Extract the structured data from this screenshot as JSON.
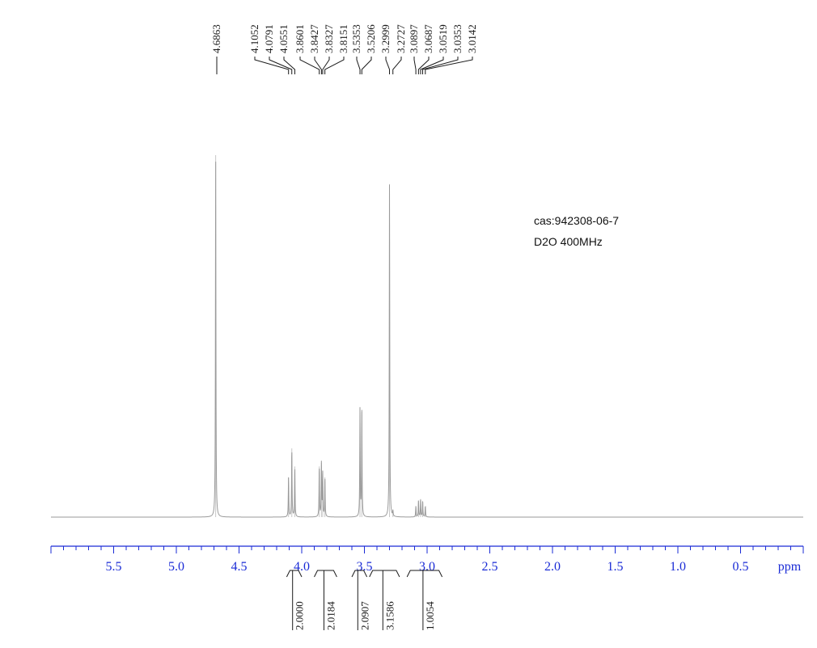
{
  "chart_data": {
    "type": "line",
    "title": "",
    "xlabel": "ppm",
    "ylabel": "",
    "xlim": [
      6.0,
      0.0
    ],
    "x_reversed": true,
    "grid": false,
    "legend": "none",
    "x_ticks": [
      5.5,
      5.0,
      4.5,
      4.0,
      3.5,
      3.0,
      2.5,
      2.0,
      1.5,
      1.0,
      0.5
    ],
    "x_tick_labels": [
      "5.5",
      "5.0",
      "4.5",
      "4.0",
      "3.5",
      "3.0",
      "2.5",
      "2.0",
      "1.5",
      "1.0",
      "0.5"
    ],
    "peaks": [
      {
        "ppm": 4.6863,
        "height": 1.0
      },
      {
        "ppm": 4.1052,
        "height": 0.11
      },
      {
        "ppm": 4.0791,
        "height": 0.19
      },
      {
        "ppm": 4.0551,
        "height": 0.14
      },
      {
        "ppm": 3.8601,
        "height": 0.14
      },
      {
        "ppm": 3.8427,
        "height": 0.15
      },
      {
        "ppm": 3.8327,
        "height": 0.12
      },
      {
        "ppm": 3.8151,
        "height": 0.11
      },
      {
        "ppm": 3.5353,
        "height": 0.3
      },
      {
        "ppm": 3.5206,
        "height": 0.29
      },
      {
        "ppm": 3.2999,
        "height": 0.92
      },
      {
        "ppm": 3.2727,
        "height": 0.015
      },
      {
        "ppm": 3.0897,
        "height": 0.03
      },
      {
        "ppm": 3.0687,
        "height": 0.045
      },
      {
        "ppm": 3.0519,
        "height": 0.05
      },
      {
        "ppm": 3.0353,
        "height": 0.045
      },
      {
        "ppm": 3.0142,
        "height": 0.03
      }
    ],
    "peak_labels": [
      "4.6863",
      "4.1052",
      "4.0791",
      "4.0551",
      "3.8601",
      "3.8427",
      "3.8327",
      "3.8151",
      "3.5353",
      "3.5206",
      "3.2999",
      "3.2727",
      "3.0897",
      "3.0687",
      "3.0519",
      "3.0353",
      "3.0142"
    ],
    "integrals": [
      {
        "value": "2.0000",
        "from": 4.12,
        "to": 4.0
      },
      {
        "value": "2.0184",
        "from": 3.9,
        "to": 3.72
      },
      {
        "value": "2.0907",
        "from": 3.6,
        "to": 3.48
      },
      {
        "value": "3.1586",
        "from": 3.46,
        "to": 3.22
      },
      {
        "value": "1.0054",
        "from": 3.16,
        "to": 2.88
      }
    ],
    "annotations": [
      "cas:942308-06-7",
      "D2O 400MHz"
    ]
  },
  "colors": {
    "axis": "#1a2bd6",
    "spectrum": "#9a9a9a",
    "labels": "#1a1a1a"
  }
}
